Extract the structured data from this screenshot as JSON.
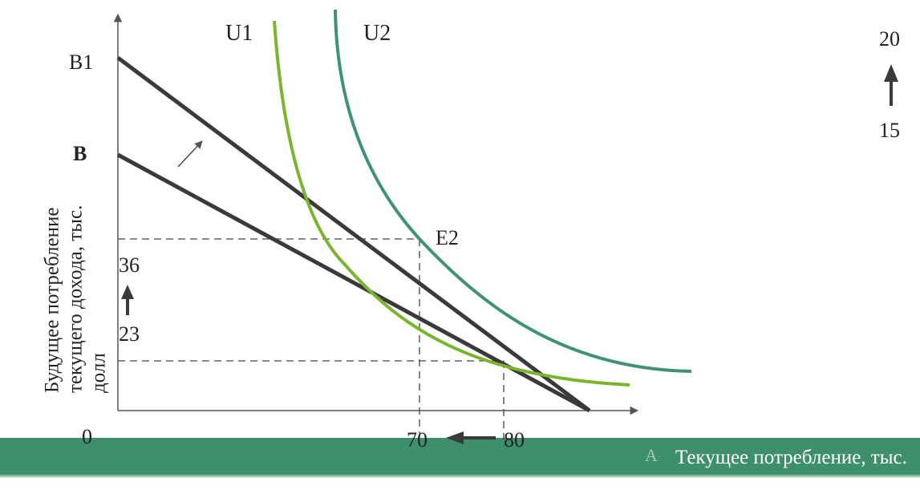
{
  "labels": {
    "u1": "U1",
    "u2": "U2",
    "b1": "B1",
    "b": "B",
    "e2": "E2",
    "origin": "0",
    "y36": "36",
    "y23": "23",
    "x70": "70",
    "x80": "80",
    "right_top": "20",
    "right_bottom": "15",
    "faint_a": "A",
    "x_axis_caption": "Текущее потребление, тыс. долл.",
    "y_axis_caption_line1": "Будущее потребление",
    "y_axis_caption_line2": "текущего дохода, тыс.",
    "y_axis_caption_line3": "долл"
  },
  "colors": {
    "curve_u1": "#7ab52e",
    "curve_u2": "#3f9276",
    "budget_lines": "#3a3a3a",
    "guides": "#444444",
    "band": "#3e8f6b"
  }
}
